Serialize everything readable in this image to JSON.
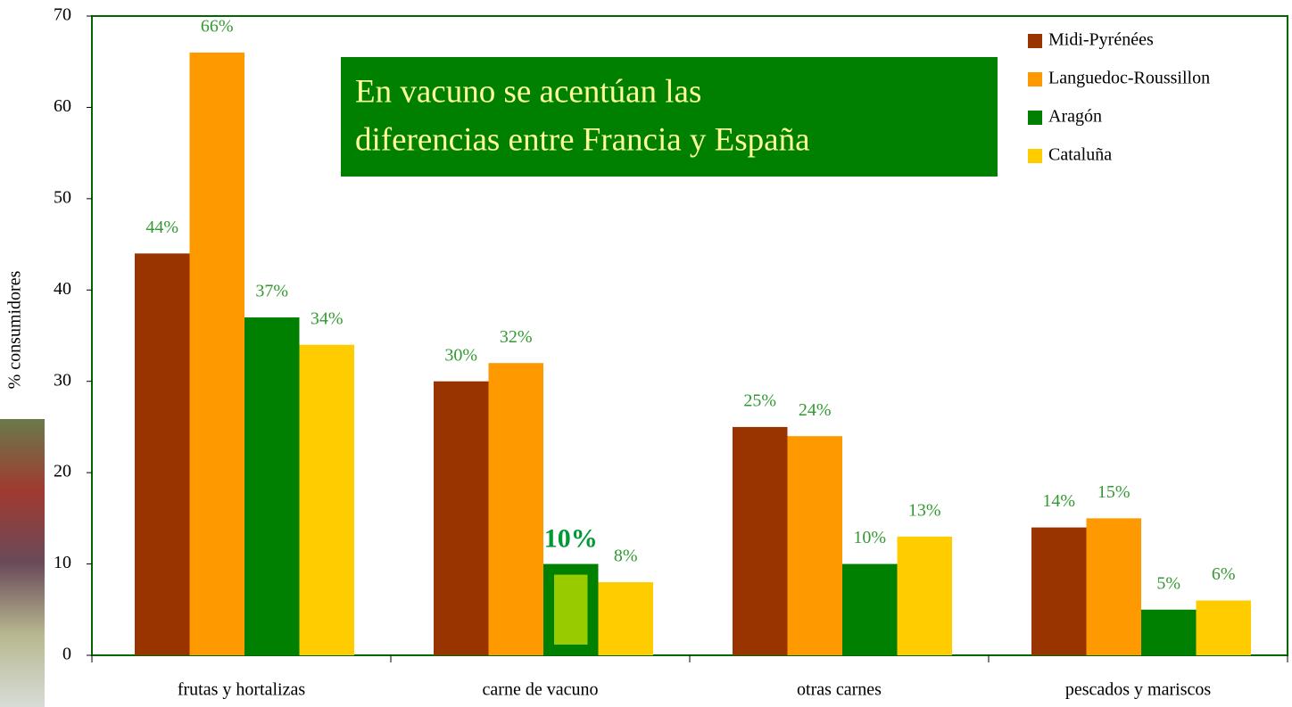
{
  "chart_data": {
    "type": "bar",
    "annotation": [
      "En vacuno se acentúan las",
      "diferencias entre Francia y España"
    ],
    "y_label": "% consumidores",
    "categories": [
      "frutas y hortalizas",
      "carne de vacuno",
      "otras carnes",
      "pescados y mariscos"
    ],
    "series": [
      {
        "name": "Midi-Pyrénées",
        "color": "#993300",
        "values": [
          44,
          30,
          25,
          14
        ],
        "value_labels": [
          "44%",
          "30%",
          "25%",
          "14%"
        ]
      },
      {
        "name": "Languedoc-Roussillon",
        "color": "#ff9900",
        "values": [
          66,
          32,
          24,
          15
        ],
        "value_labels": [
          "66%",
          "32%",
          "24%",
          "15%"
        ]
      },
      {
        "name": "Aragón",
        "color": "#008000",
        "values": [
          37,
          10,
          10,
          5
        ],
        "value_labels": [
          "37%",
          "10%",
          "10%",
          "5%"
        ],
        "highlight_index": 1,
        "highlight_color": "#99cc00"
      },
      {
        "name": "Cataluña",
        "color": "#ffcc00",
        "values": [
          34,
          8,
          13,
          6
        ],
        "value_labels": [
          "34%",
          "8%",
          "13%",
          "6%"
        ]
      }
    ],
    "ylim": [
      0,
      70
    ],
    "yticks": [
      0,
      10,
      20,
      30,
      40,
      50,
      60,
      70
    ],
    "legend": "top-right",
    "label_color": "#339933"
  }
}
